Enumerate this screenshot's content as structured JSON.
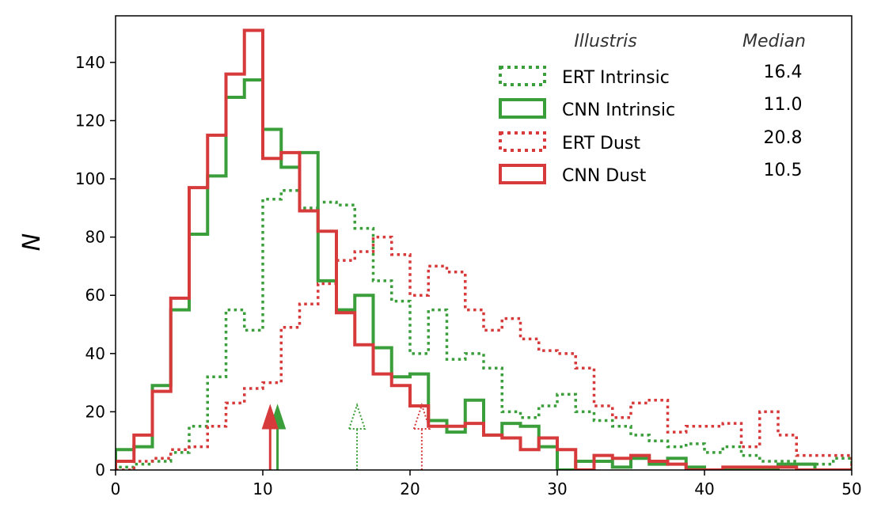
{
  "chart_data": {
    "type": "histogram",
    "ylabel": "N",
    "xlim": [
      0,
      50
    ],
    "ylim": [
      0,
      156
    ],
    "xticks": [
      0,
      10,
      20,
      30,
      40,
      50
    ],
    "yticks": [
      0,
      20,
      40,
      60,
      80,
      100,
      120,
      140
    ],
    "bin_edges": [
      0,
      1.25,
      2.5,
      3.75,
      5,
      6.25,
      7.5,
      8.75,
      10,
      11.25,
      12.5,
      13.75,
      15,
      16.25,
      17.5,
      18.75,
      20,
      21.25,
      22.5,
      23.75,
      25,
      26.25,
      27.5,
      28.75,
      30,
      31.25,
      32.5,
      33.75,
      35,
      36.25,
      37.5,
      38.75,
      40,
      41.25,
      42.5,
      43.75,
      45,
      46.25,
      47.5,
      48.75,
      50
    ],
    "legend_headers": {
      "sample": "Illustris",
      "median": "Median"
    },
    "legend_placement": "top-right",
    "series": [
      {
        "name": "ERT Intrinsic",
        "color": "#3a9e3a",
        "style": "dotted",
        "median": 16.4,
        "median_label": "16.4",
        "values": [
          1,
          2,
          3,
          6,
          15,
          32,
          55,
          48,
          93,
          96,
          90,
          92,
          91,
          83,
          65,
          58,
          40,
          55,
          38,
          40,
          35,
          20,
          18,
          22,
          26,
          20,
          17,
          15,
          12,
          10,
          8,
          9,
          6,
          8,
          5,
          3,
          3,
          2,
          2,
          4
        ]
      },
      {
        "name": "CNN Intrinsic",
        "color": "#3a9e3a",
        "style": "solid",
        "median": 11.0,
        "median_label": "11.0",
        "values": [
          7,
          8,
          29,
          55,
          81,
          101,
          128,
          134,
          117,
          104,
          109,
          65,
          55,
          60,
          42,
          32,
          33,
          17,
          13,
          24,
          12,
          16,
          15,
          8,
          0,
          3,
          3,
          1,
          4,
          2,
          4,
          1,
          0,
          0,
          0,
          0,
          2,
          2,
          0,
          0
        ]
      },
      {
        "name": "ERT Dust",
        "color": "#d63a3a",
        "style": "dotted",
        "median": 20.8,
        "median_label": "20.8",
        "values": [
          0,
          3,
          4,
          7,
          8,
          15,
          23,
          28,
          30,
          49,
          57,
          64,
          72,
          75,
          80,
          74,
          60,
          70,
          68,
          55,
          48,
          52,
          45,
          41,
          40,
          35,
          22,
          18,
          23,
          24,
          13,
          15,
          15,
          16,
          8,
          20,
          12,
          5,
          5,
          5
        ]
      },
      {
        "name": "CNN Dust",
        "color": "#d63a3a",
        "style": "solid",
        "median": 10.5,
        "median_label": "10.5",
        "values": [
          3,
          12,
          27,
          59,
          97,
          115,
          136,
          151,
          107,
          109,
          89,
          82,
          54,
          43,
          33,
          29,
          22,
          15,
          15,
          16,
          12,
          11,
          7,
          11,
          7,
          0,
          5,
          4,
          5,
          3,
          2,
          0,
          0,
          1,
          1,
          1,
          1,
          0,
          0,
          0
        ]
      }
    ]
  }
}
